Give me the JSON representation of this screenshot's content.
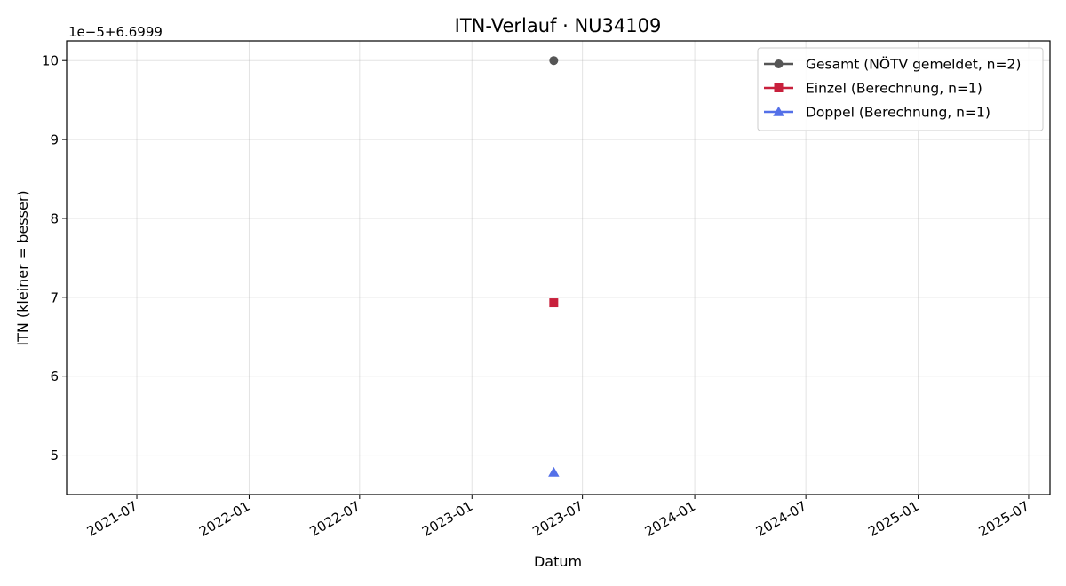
{
  "chart_data": {
    "type": "scatter",
    "title": "ITN-Verlauf · NU34109",
    "xlabel": "Datum",
    "ylabel": "ITN  (kleiner = besser)",
    "y_offset_label": "1e−5+6.6999",
    "y_offset": 6.6999,
    "y_scale": 1e-05,
    "xlim": [
      "2021-03-08",
      "2025-08-05"
    ],
    "ylim": [
      4.5,
      10.25
    ],
    "x_ticks": [
      "2021-07",
      "2022-01",
      "2022-07",
      "2023-01",
      "2023-07",
      "2024-01",
      "2024-07",
      "2025-01",
      "2025-07"
    ],
    "y_ticks": [
      5,
      6,
      7,
      8,
      9,
      10
    ],
    "grid": true,
    "legend_position": "top-right",
    "series": [
      {
        "name": "Gesamt (NÖTV gemeldet, n=2)",
        "color": "#555555",
        "marker": "circle",
        "points": [
          {
            "x": "2023-05-15",
            "y": 10.0
          }
        ]
      },
      {
        "name": "Einzel (Berechnung, n=1)",
        "color": "#c8203c",
        "marker": "square",
        "points": [
          {
            "x": "2023-05-15",
            "y": 6.93
          }
        ]
      },
      {
        "name": "Doppel (Berechnung, n=1)",
        "color": "#5470e8",
        "marker": "triangle",
        "points": [
          {
            "x": "2023-05-15",
            "y": 4.78
          }
        ]
      }
    ]
  }
}
